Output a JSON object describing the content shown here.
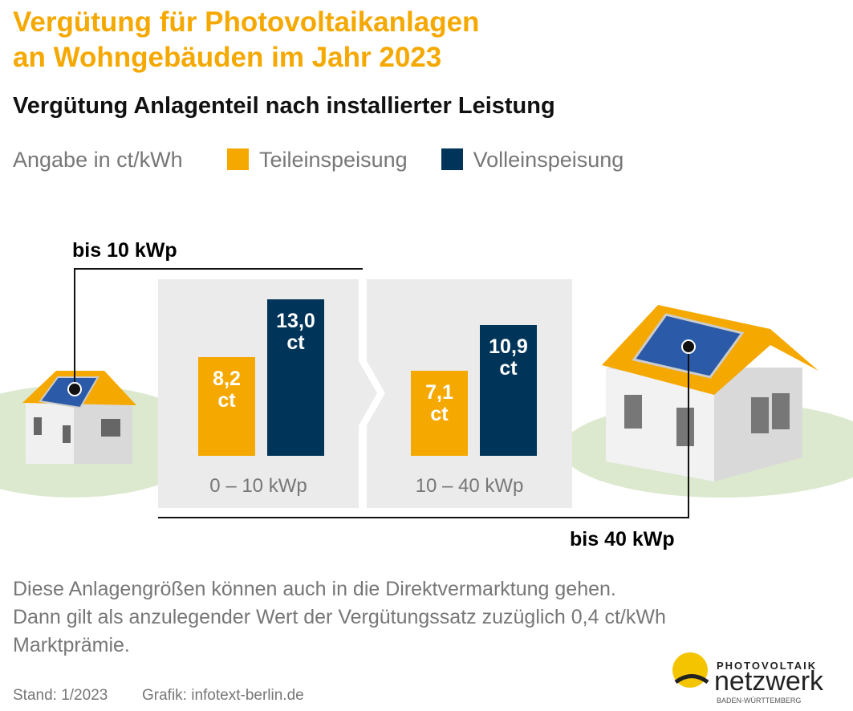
{
  "chart_data": {
    "type": "bar",
    "title": [
      "Vergütung für Photovoltaikanlagen",
      "an Wohngebäuden im Jahr 2023"
    ],
    "subtitle": "Vergütung Anlagenteil nach installierter Leistung",
    "unit_label": "Angabe in ct/kWh",
    "categories": [
      "0 – 10 kWp",
      "10 – 40 kWp"
    ],
    "series": [
      {
        "name": "Teileinspeisung",
        "color": "#f5a800",
        "values": [
          8.2,
          7.1
        ],
        "value_labels": [
          "8,2 ct",
          "7,1 ct"
        ]
      },
      {
        "name": "Volleinspeisung",
        "color": "#003459",
        "values": [
          13.0,
          10.9
        ],
        "value_labels": [
          "13,0 ct",
          "10,9 ct"
        ]
      }
    ],
    "annotations": [
      "bis 10 kWp",
      "bis 40 kWp"
    ],
    "note": [
      "Diese Anlagengrößen können auch in die Direktvermarktung gehen.",
      "Dann gilt als anzulegender Wert der Vergütungssatz zuzüglich 0,4 ct/kWh",
      "Marktprämie."
    ],
    "footer": [
      "Stand: 1/2023",
      "Grafik: infotext-berlin.de"
    ],
    "logo": [
      "PHOTOVOLTAIK",
      "netzwerk",
      "BADEN-WÜRTTEMBERG"
    ]
  }
}
